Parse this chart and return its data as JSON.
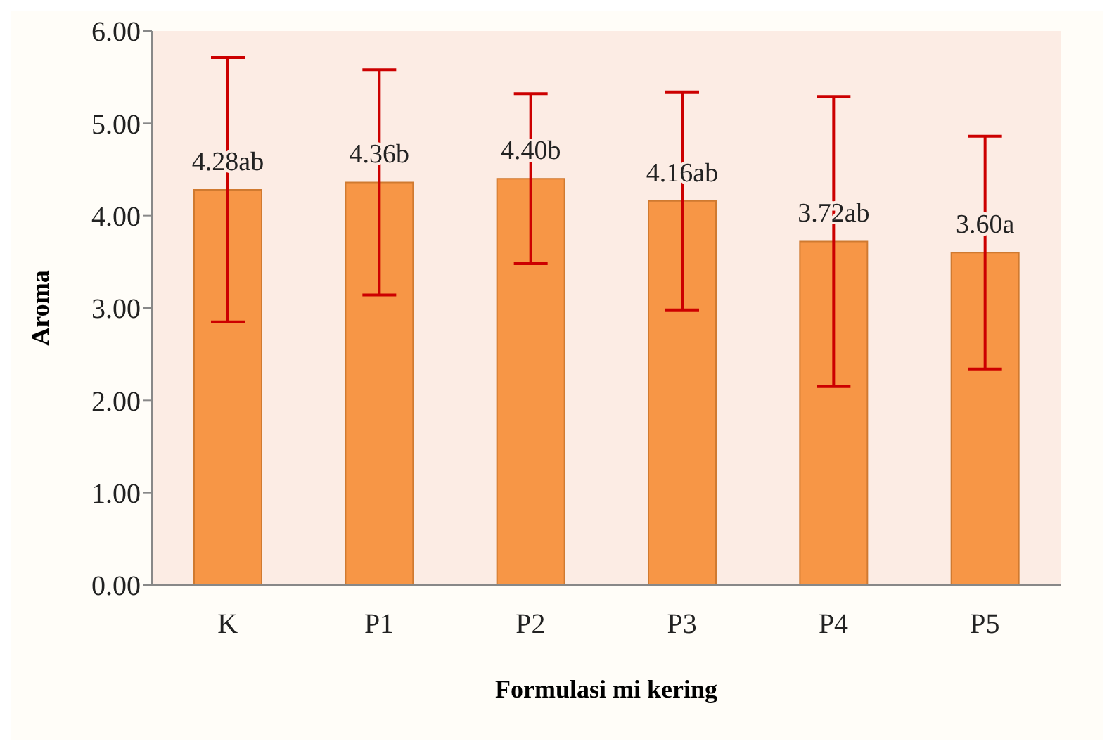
{
  "chart_data": {
    "type": "bar",
    "xlabel": "Formulasi mi kering",
    "ylabel": "Aroma",
    "categories": [
      "K",
      "P1",
      "P2",
      "P3",
      "P4",
      "P5"
    ],
    "values": [
      4.28,
      4.36,
      4.4,
      4.16,
      3.72,
      3.6
    ],
    "value_labels": [
      "4.28ab",
      "4.36b",
      "4.40b",
      "4.16ab",
      "3.72ab",
      "3.60a"
    ],
    "errors": [
      1.43,
      1.22,
      0.92,
      1.18,
      1.57,
      1.26
    ],
    "color": "#f79646",
    "ylim": [
      0,
      6
    ],
    "yticks": [
      {
        "value": 0,
        "label": "0.00"
      },
      {
        "value": 1,
        "label": "1.00"
      },
      {
        "value": 2,
        "label": "2.00"
      },
      {
        "value": 3,
        "label": "3.00"
      },
      {
        "value": 4,
        "label": "4.00"
      },
      {
        "value": 5,
        "label": "5.00"
      },
      {
        "value": 6,
        "label": "6.00"
      }
    ],
    "grid": false,
    "legend": false
  }
}
